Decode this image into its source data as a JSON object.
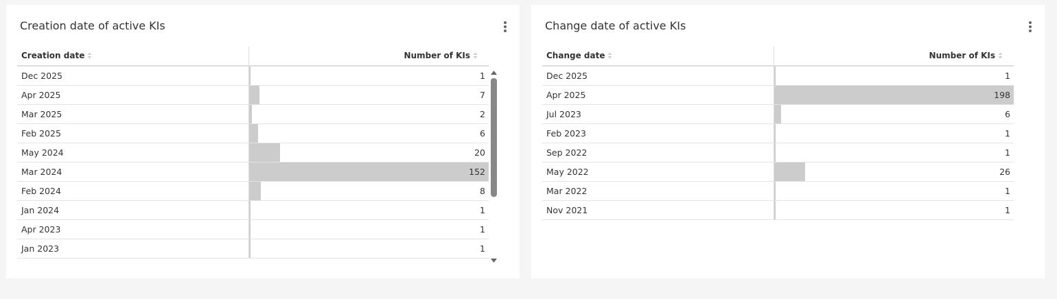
{
  "panels": [
    {
      "title": "Creation date of active KIs",
      "columns": [
        "Creation date",
        "Number of KIs"
      ],
      "rows": [
        [
          "Dec 2025",
          1
        ],
        [
          "Apr 2025",
          7
        ],
        [
          "Mar 2025",
          2
        ],
        [
          "Feb 2025",
          6
        ],
        [
          "May 2024",
          20
        ],
        [
          "Mar 2024",
          152
        ],
        [
          "Feb 2024",
          8
        ],
        [
          "Jan 2024",
          1
        ],
        [
          "Apr 2023",
          1
        ],
        [
          "Jan 2023",
          1
        ]
      ]
    },
    {
      "title": "Change date of active KIs",
      "columns": [
        "Change date",
        "Number of KIs"
      ],
      "rows": [
        [
          "Dec 2025",
          1
        ],
        [
          "Apr 2025",
          198
        ],
        [
          "Jul 2023",
          6
        ],
        [
          "Feb 2023",
          1
        ],
        [
          "Sep 2022",
          1
        ],
        [
          "May 2022",
          26
        ],
        [
          "Mar 2022",
          1
        ],
        [
          "Nov 2021",
          1
        ]
      ]
    }
  ]
}
